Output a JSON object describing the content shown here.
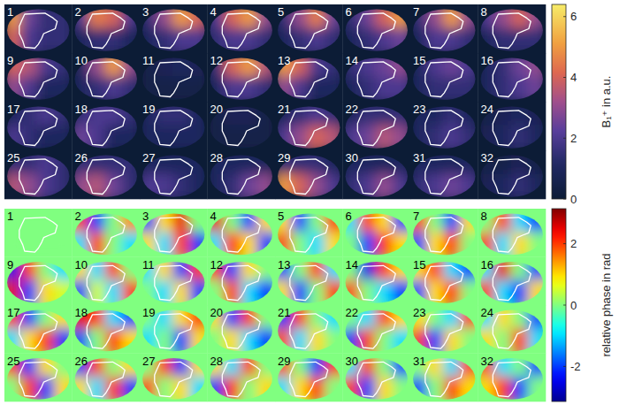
{
  "chart_data": [
    {
      "type": "heatmap",
      "colorbar_label": "B₁⁺ in a.u.",
      "colorbar_range": [
        0,
        6.4
      ],
      "colorbar_ticks": [
        0,
        2,
        4,
        6
      ],
      "tiles": [
        {
          "label": "1",
          "cells": [
            [
              5,
              2.5,
              1.5,
              1.5
            ],
            [
              4,
              2,
              1.5,
              1.5
            ]
          ]
        },
        {
          "label": "2",
          "cells": [
            [
              2,
              4.5,
              4,
              2
            ],
            [
              1,
              1.5,
              1.5,
              1
            ]
          ]
        },
        {
          "label": "3",
          "cells": [
            [
              1.5,
              3,
              5,
              4
            ],
            [
              1,
              1.5,
              2,
              2
            ]
          ]
        },
        {
          "label": "4",
          "cells": [
            [
              2,
              4,
              5,
              3
            ],
            [
              1.5,
              2,
              2,
              1.5
            ]
          ]
        },
        {
          "label": "5",
          "cells": [
            [
              1.5,
              3,
              4.5,
              2.5
            ],
            [
              1,
              1.5,
              2,
              1.5
            ]
          ]
        },
        {
          "label": "6",
          "cells": [
            [
              1.5,
              2.5,
              4,
              5
            ],
            [
              1,
              1.5,
              2,
              2.5
            ]
          ]
        },
        {
          "label": "7",
          "cells": [
            [
              1.5,
              3,
              5,
              3
            ],
            [
              1,
              2,
              2,
              1.5
            ]
          ]
        },
        {
          "label": "8",
          "cells": [
            [
              2,
              3,
              4,
              3
            ],
            [
              1,
              1.5,
              1.5,
              1.5
            ]
          ]
        },
        {
          "label": "9",
          "cells": [
            [
              4,
              3.5,
              2,
              1.5
            ],
            [
              3,
              2,
              1,
              1
            ]
          ]
        },
        {
          "label": "10",
          "cells": [
            [
              1,
              3,
              5,
              3
            ],
            [
              1,
              1.5,
              2,
              1.5
            ]
          ]
        },
        {
          "label": "11",
          "cells": [
            [
              0.5,
              0.8,
              1,
              0.8
            ],
            [
              0.5,
              0.5,
              0.5,
              0.5
            ]
          ]
        },
        {
          "label": "12",
          "cells": [
            [
              1.5,
              4,
              5,
              3.5
            ],
            [
              1,
              2,
              2,
              1.5
            ]
          ]
        },
        {
          "label": "13",
          "cells": [
            [
              5,
              4,
              2,
              1.5
            ],
            [
              3,
              2,
              1,
              1
            ]
          ]
        },
        {
          "label": "14",
          "cells": [
            [
              1.5,
              2,
              2.5,
              3
            ],
            [
              1,
              1.5,
              2,
              2
            ]
          ]
        },
        {
          "label": "15",
          "cells": [
            [
              1,
              2,
              2.5,
              2
            ],
            [
              1,
              1.5,
              1.5,
              1.5
            ]
          ]
        },
        {
          "label": "16",
          "cells": [
            [
              1,
              1.5,
              2.5,
              3
            ],
            [
              1,
              1.5,
              2,
              2.5
            ]
          ]
        },
        {
          "label": "17",
          "cells": [
            [
              1,
              1.5,
              2,
              1.5
            ],
            [
              2,
              1.5,
              1,
              1
            ]
          ]
        },
        {
          "label": "18",
          "cells": [
            [
              1.5,
              2,
              2,
              1.5
            ],
            [
              2.5,
              2,
              1,
              1
            ]
          ]
        },
        {
          "label": "19",
          "cells": [
            [
              1,
              1.5,
              1.5,
              1
            ],
            [
              1,
              1,
              1,
              1
            ]
          ]
        },
        {
          "label": "20",
          "cells": [
            [
              0.5,
              0.8,
              0.8,
              0.5
            ],
            [
              0.5,
              0.5,
              0.5,
              0.5
            ]
          ]
        },
        {
          "label": "21",
          "cells": [
            [
              1,
              1.5,
              2,
              1.5
            ],
            [
              2,
              3,
              4,
              3.5
            ]
          ]
        },
        {
          "label": "22",
          "cells": [
            [
              1,
              1.5,
              1.5,
              1.5
            ],
            [
              2,
              2.5,
              3.5,
              3
            ]
          ]
        },
        {
          "label": "23",
          "cells": [
            [
              1,
              1,
              1.5,
              1
            ],
            [
              1,
              1.5,
              2,
              1.5
            ]
          ]
        },
        {
          "label": "24",
          "cells": [
            [
              0.5,
              0.8,
              1,
              0.8
            ],
            [
              0.8,
              1,
              1.5,
              1
            ]
          ]
        },
        {
          "label": "25",
          "cells": [
            [
              1.5,
              1.5,
              2,
              1.5
            ],
            [
              3.5,
              3,
              2,
              1.5
            ]
          ]
        },
        {
          "label": "26",
          "cells": [
            [
              1.5,
              1.5,
              1.5,
              1.5
            ],
            [
              3,
              3.5,
              2.5,
              1.5
            ]
          ]
        },
        {
          "label": "27",
          "cells": [
            [
              1,
              1,
              1,
              1
            ],
            [
              2,
              2,
              1.5,
              1
            ]
          ]
        },
        {
          "label": "28",
          "cells": [
            [
              1,
              1,
              1,
              1
            ],
            [
              1,
              1.5,
              2.5,
              3
            ]
          ]
        },
        {
          "label": "29",
          "cells": [
            [
              1.5,
              1.5,
              1.5,
              1
            ],
            [
              5,
              4,
              3,
              2
            ]
          ]
        },
        {
          "label": "30",
          "cells": [
            [
              1,
              1,
              1,
              1
            ],
            [
              1.5,
              2,
              3,
              2
            ]
          ]
        },
        {
          "label": "31",
          "cells": [
            [
              1,
              1,
              1,
              1
            ],
            [
              1.5,
              2,
              2.5,
              2
            ]
          ]
        },
        {
          "label": "32",
          "cells": [
            [
              0.5,
              0.5,
              0.8,
              0.5
            ],
            [
              0.8,
              1,
              1.5,
              1
            ]
          ]
        }
      ]
    },
    {
      "type": "heatmap",
      "colorbar_label": "relative phase in rad",
      "colorbar_range": [
        -3.1416,
        3.1416
      ],
      "colorbar_ticks": [
        -2,
        0,
        2
      ],
      "tiles": [
        {
          "label": "1",
          "cells": [
            [
              0,
              0,
              0,
              0
            ],
            [
              0,
              0,
              0,
              0
            ]
          ]
        },
        {
          "label": "2",
          "cells": [
            [
              2,
              -2,
              0,
              1.5
            ],
            [
              -1,
              2,
              0,
              -1
            ]
          ]
        },
        {
          "label": "3",
          "cells": [
            [
              -2,
              1,
              2.5,
              0
            ],
            [
              1,
              -1,
              2,
              -2
            ]
          ]
        },
        {
          "label": "4",
          "cells": [
            [
              2.5,
              0,
              -2,
              1
            ],
            [
              -1,
              2,
              1,
              -2
            ]
          ]
        },
        {
          "label": "5",
          "cells": [
            [
              1,
              -2,
              0,
              2
            ],
            [
              2,
              0,
              -1,
              1
            ]
          ]
        },
        {
          "label": "6",
          "cells": [
            [
              -1,
              2,
              1,
              -2
            ],
            [
              0,
              -2,
              2,
              1
            ]
          ]
        },
        {
          "label": "7",
          "cells": [
            [
              2,
              0,
              -2,
              1
            ],
            [
              -2,
              1,
              2,
              0
            ]
          ]
        },
        {
          "label": "8",
          "cells": [
            [
              0,
              2,
              -1,
              -2
            ],
            [
              2,
              -1,
              1,
              0
            ]
          ]
        },
        {
          "label": "9",
          "cells": [
            [
              -2.5,
              2,
              0,
              -1
            ],
            [
              2.5,
              -2,
              1,
              0.5
            ]
          ]
        },
        {
          "label": "10",
          "cells": [
            [
              1,
              -1,
              2,
              0
            ],
            [
              -2,
              0.5,
              -1,
              2
            ]
          ]
        },
        {
          "label": "11",
          "cells": [
            [
              -1,
              1,
              -2,
              2
            ],
            [
              0,
              -1,
              1,
              -2
            ]
          ]
        },
        {
          "label": "12",
          "cells": [
            [
              2,
              -2,
              1,
              0
            ],
            [
              0,
              2,
              -1,
              -2
            ]
          ]
        },
        {
          "label": "13",
          "cells": [
            [
              -2,
              0,
              2,
              -1
            ],
            [
              1,
              -2,
              0,
              2
            ]
          ]
        },
        {
          "label": "14",
          "cells": [
            [
              0,
              -2.5,
              2,
              1
            ],
            [
              2,
              0,
              -1,
              -2
            ]
          ]
        },
        {
          "label": "15",
          "cells": [
            [
              1,
              2,
              -1,
              -2
            ],
            [
              -2,
              1,
              2,
              0
            ]
          ]
        },
        {
          "label": "16",
          "cells": [
            [
              -1,
              2.5,
              0,
              -2
            ],
            [
              2,
              -1,
              -2,
              1
            ]
          ]
        },
        {
          "label": "17",
          "cells": [
            [
              2,
              -2,
              0,
              1
            ],
            [
              -1,
              1,
              2,
              -2
            ]
          ]
        },
        {
          "label": "18",
          "cells": [
            [
              2.5,
              2,
              -1,
              -2
            ],
            [
              -2,
              0,
              2,
              1
            ]
          ]
        },
        {
          "label": "19",
          "cells": [
            [
              0,
              -1,
              1,
              2
            ],
            [
              -1,
              0,
              -2,
              1
            ]
          ]
        },
        {
          "label": "20",
          "cells": [
            [
              1,
              -2,
              2,
              0
            ],
            [
              0,
              1,
              -1,
              -2
            ]
          ]
        },
        {
          "label": "21",
          "cells": [
            [
              -2,
              2,
              0,
              -1
            ],
            [
              2,
              -1,
              1,
              0
            ]
          ]
        },
        {
          "label": "22",
          "cells": [
            [
              0,
              -1,
              2,
              1
            ],
            [
              -2,
              2,
              0,
              -1
            ]
          ]
        },
        {
          "label": "23",
          "cells": [
            [
              1,
              0,
              -1,
              2
            ],
            [
              2,
              -2,
              1,
              0
            ]
          ]
        },
        {
          "label": "24",
          "cells": [
            [
              -1,
              1,
              0,
              -2
            ],
            [
              1,
              0,
              2,
              -1
            ]
          ]
        },
        {
          "label": "25",
          "cells": [
            [
              2,
              -2,
              1,
              0
            ],
            [
              0,
              2,
              -2,
              1
            ]
          ]
        },
        {
          "label": "26",
          "cells": [
            [
              -2,
              2,
              0,
              1
            ],
            [
              1,
              -1,
              2,
              -2
            ]
          ]
        },
        {
          "label": "27",
          "cells": [
            [
              0,
              2,
              -2,
              1
            ],
            [
              2,
              0,
              1,
              -1
            ]
          ]
        },
        {
          "label": "28",
          "cells": [
            [
              1,
              -1,
              2,
              0
            ],
            [
              -2,
              2,
              0,
              1
            ]
          ]
        },
        {
          "label": "29",
          "cells": [
            [
              2,
              0,
              -2,
              2
            ],
            [
              -1,
              1,
              2,
              0
            ]
          ]
        },
        {
          "label": "30",
          "cells": [
            [
              -1,
              2,
              0,
              -2
            ],
            [
              2,
              -2,
              1,
              0
            ]
          ]
        },
        {
          "label": "31",
          "cells": [
            [
              0,
              1,
              -1,
              2
            ],
            [
              -2,
              0,
              2,
              1
            ]
          ]
        },
        {
          "label": "32",
          "cells": [
            [
              2,
              -1,
              0,
              -2
            ],
            [
              1,
              2,
              -2,
              0
            ]
          ]
        }
      ]
    }
  ]
}
